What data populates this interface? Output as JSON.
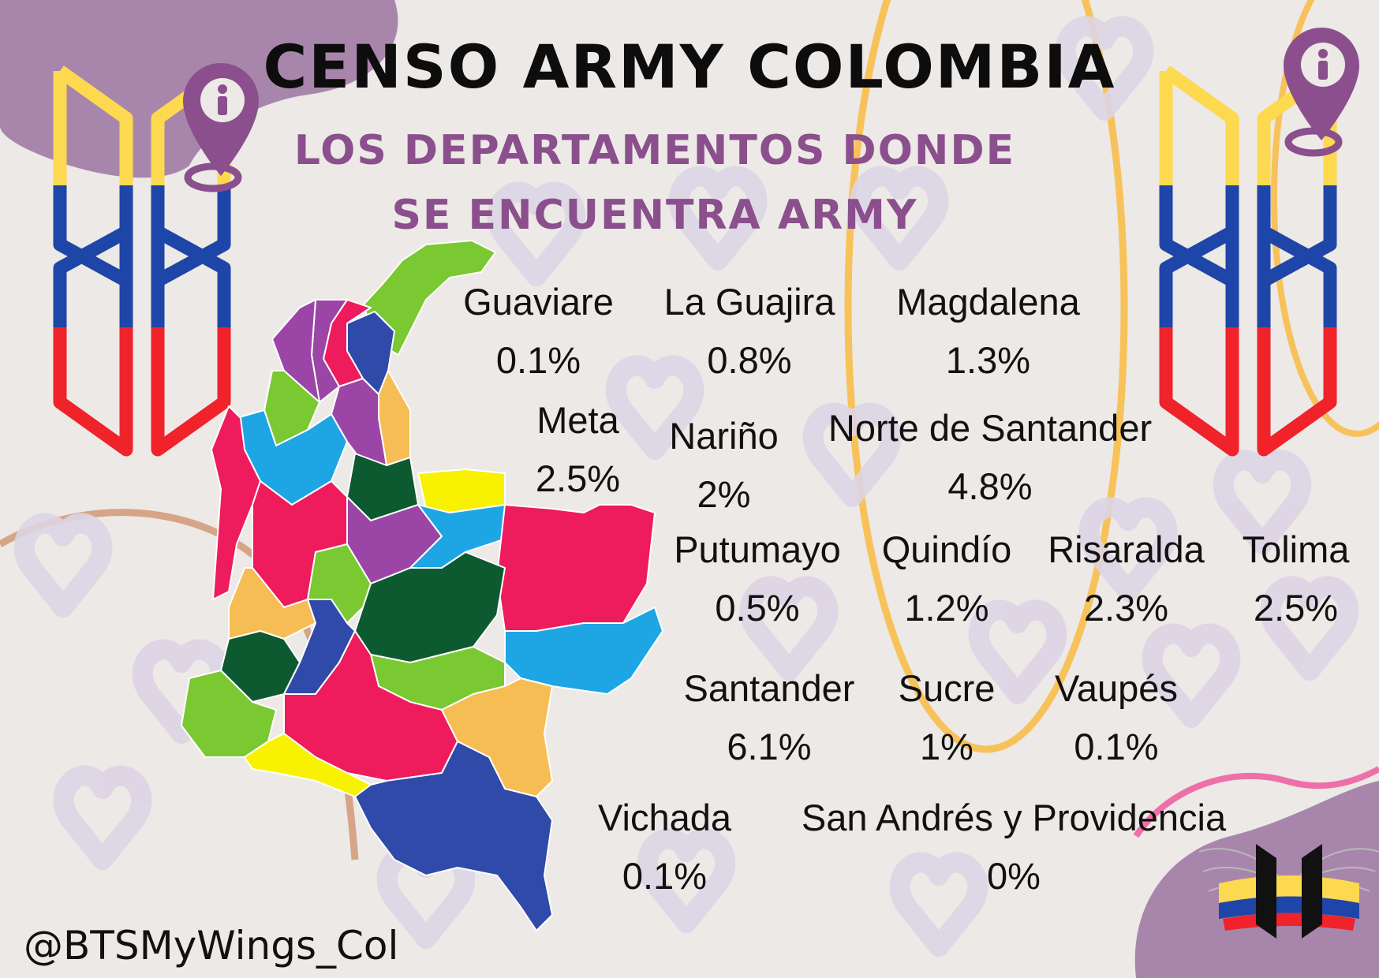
{
  "header": {
    "title": "CENSO ARMY COLOMBIA",
    "subtitle": "LOS DEPARTAMENTOS DONDE SE ENCUENTRA ARMY"
  },
  "stats": [
    {
      "name": "Guaviare",
      "value": "0.1%"
    },
    {
      "name": "La Guajira",
      "value": "0.8%"
    },
    {
      "name": "Magdalena",
      "value": "1.3%"
    },
    {
      "name": "Meta",
      "value": "2.5%"
    },
    {
      "name": "Nariño",
      "value": "2%"
    },
    {
      "name": "Norte de Santander",
      "value": "4.8%"
    },
    {
      "name": "Putumayo",
      "value": "0.5%"
    },
    {
      "name": "Quindío",
      "value": "1.2%"
    },
    {
      "name": "Risaralda",
      "value": "2.3%"
    },
    {
      "name": "Tolima",
      "value": "2.5%"
    },
    {
      "name": "Santander",
      "value": "6.1%"
    },
    {
      "name": "Sucre",
      "value": "1%"
    },
    {
      "name": "Vaupés",
      "value": "0.1%"
    },
    {
      "name": "Vichada",
      "value": "0.1%"
    },
    {
      "name": "San Andrés y Providencia",
      "value": "0%"
    }
  ],
  "footer": {
    "handle": "@BTSMyWings_Col"
  },
  "colors": {
    "flag_yellow": "#fcd94f",
    "flag_blue": "#1e45a8",
    "flag_red": "#f0222a",
    "accent_purple": "#8a4f8c",
    "map_pink": "#ee1b5d",
    "map_green": "#7ac832",
    "map_dark_green": "#0e5a30",
    "map_light_blue": "#1ea6e4",
    "map_orange": "#f6bd55",
    "map_purple": "#9b46a6",
    "map_blue": "#2f4aa8",
    "map_yellow": "#f8f100"
  },
  "icons": [
    "location-pin-icon",
    "bts-logo-icon",
    "winged-bts-logo-icon"
  ]
}
